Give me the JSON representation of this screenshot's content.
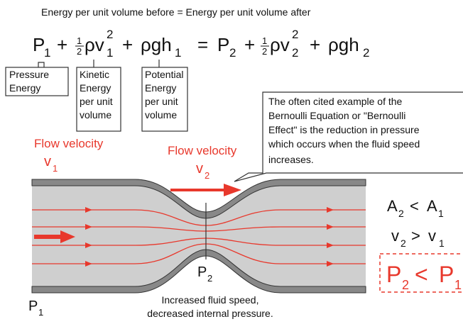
{
  "heading": "Energy per unit volume before = Energy per unit volume after",
  "equation": [
    {
      "text": "P",
      "sub": "1"
    },
    {
      "text": "+"
    },
    {
      "num": "1",
      "den": "2"
    },
    {
      "text": "ρv",
      "sup": "2",
      "sub": "1"
    },
    {
      "text": "+"
    },
    {
      "text": "ρgh",
      "sub": "1"
    },
    {
      "text": "="
    },
    {
      "text": "P",
      "sub": "2"
    },
    {
      "text": "+"
    },
    {
      "num": "1",
      "den": "2"
    },
    {
      "text": "ρv",
      "sup": "2",
      "sub": "2"
    },
    {
      "text": "+"
    },
    {
      "text": "ρgh",
      "sub": "2"
    }
  ],
  "labels": [
    {
      "lines": [
        "Pressure",
        "Energy"
      ]
    },
    {
      "lines": [
        "Kinetic",
        "Energy",
        "per unit",
        "volume"
      ]
    },
    {
      "lines": [
        "Potential",
        "Energy",
        "per unit",
        "volume"
      ]
    }
  ],
  "callout": [
    "The often cited example of the",
    "Bernoulli Equation or \"Bernoulli",
    "Effect\" is the reduction in pressure",
    "which occurs when the fluid speed",
    "increases."
  ],
  "flow1": {
    "label": "Flow velocity",
    "symbol": "v",
    "sub": "1"
  },
  "flow2": {
    "label": "Flow velocity",
    "symbol": "v",
    "sub": "2"
  },
  "p2_label": {
    "symbol": "P",
    "sub": "2"
  },
  "p1_label": {
    "symbol": "P",
    "sub": "1"
  },
  "caption": [
    "Increased fluid speed,",
    "decreased internal pressure."
  ],
  "relations": [
    {
      "left": "A",
      "left_sub": "2",
      "op": "<",
      "right": "A",
      "right_sub": "1"
    },
    {
      "left": "v",
      "left_sub": "2",
      "op": ">",
      "right": "v",
      "right_sub": "1"
    },
    {
      "left": "P",
      "left_sub": "2",
      "op": "<",
      "right": "P",
      "right_sub": "1"
    }
  ]
}
